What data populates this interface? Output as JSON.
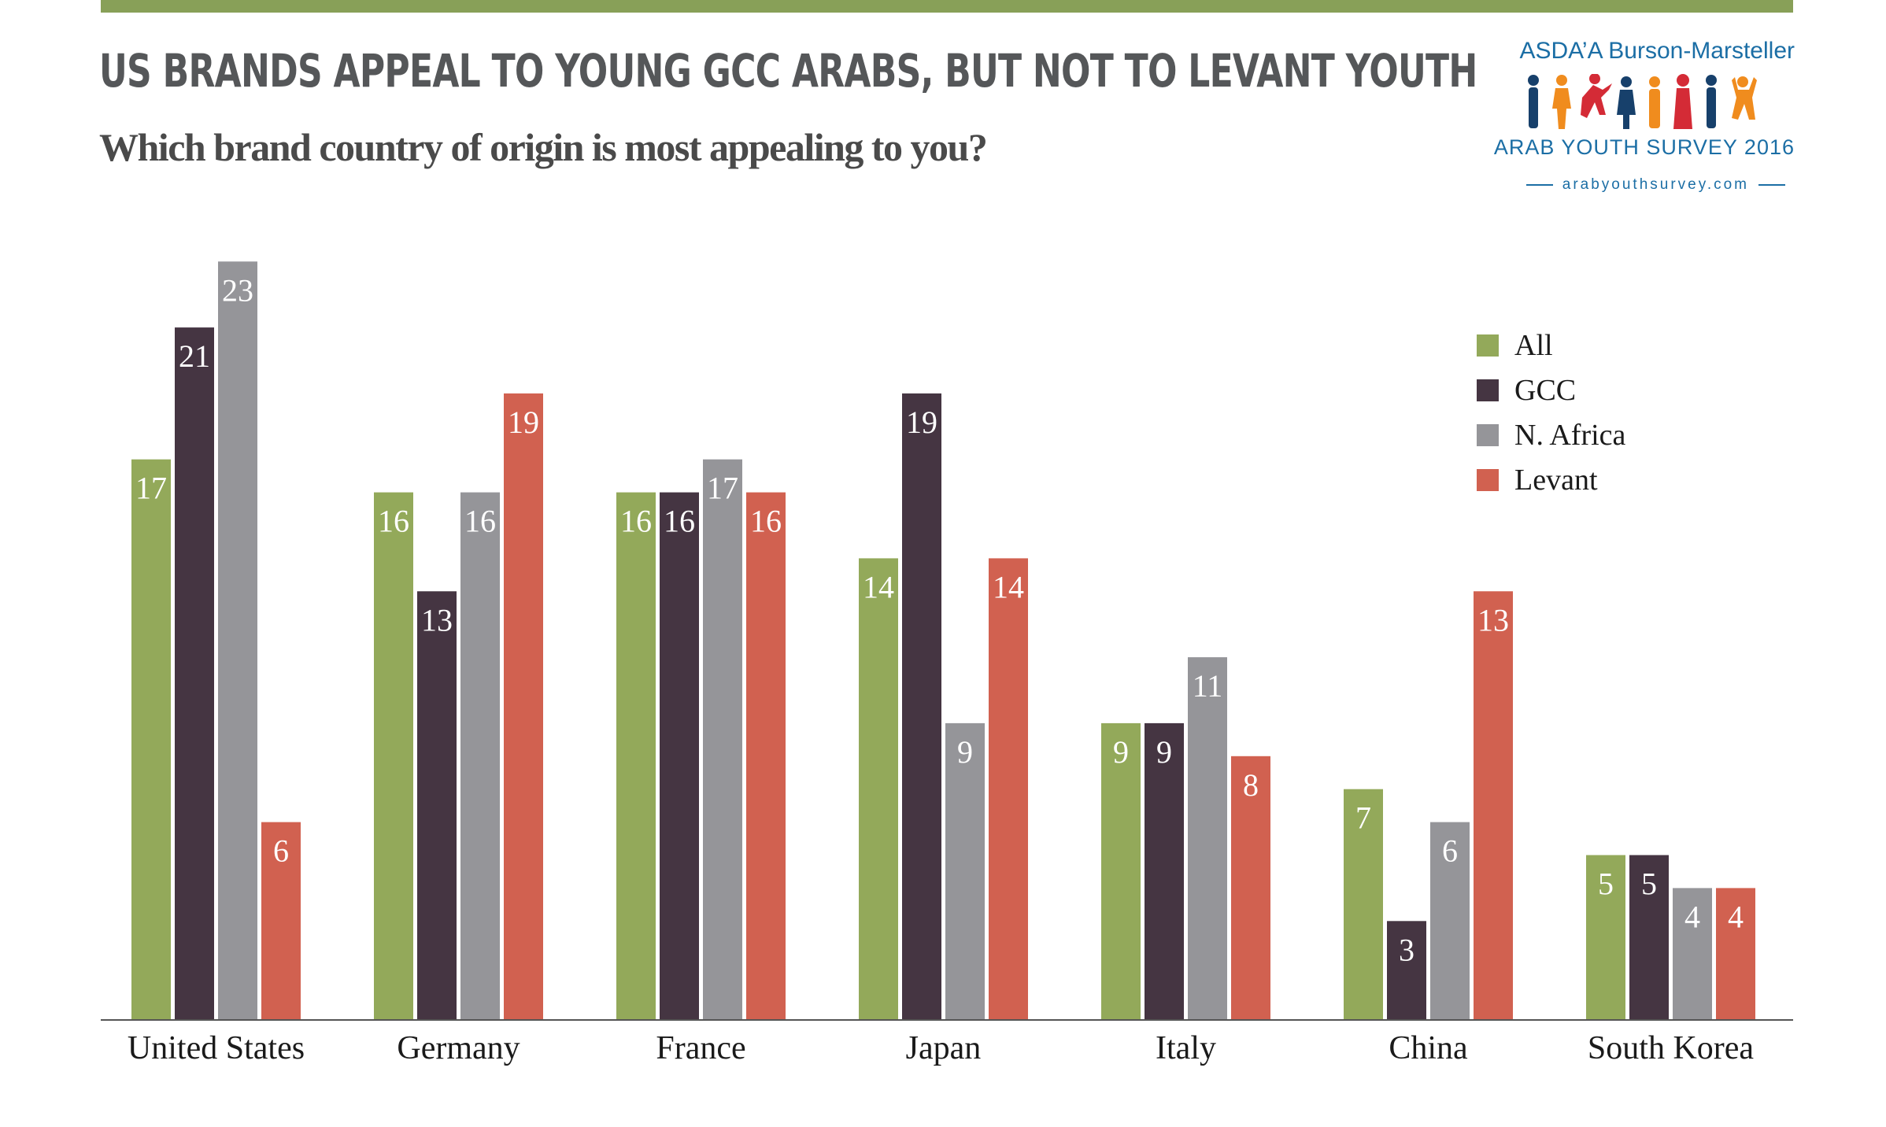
{
  "header": {
    "title": "US BRANDS APPEAL TO YOUNG GCC ARABS, BUT NOT TO LEVANT YOUTH",
    "subtitle": "Which brand country of origin is most appealing to you?"
  },
  "logo": {
    "org": "ASDA’A Burson-Marsteller",
    "survey": "ARAB YOUTH SURVEY 2016",
    "site": "arabyouthsurvey.com"
  },
  "colors": {
    "accent_band": "#88a058",
    "All": "#93a95a",
    "GCC": "#453542",
    "N. Africa": "#959599",
    "Levant": "#d16150"
  },
  "chart_data": {
    "type": "bar",
    "title": "US BRANDS APPEAL TO YOUNG GCC ARABS, BUT NOT TO LEVANT YOUTH",
    "subtitle": "Which brand country of origin is most appealing to you?",
    "categories": [
      "United States",
      "Germany",
      "France",
      "Japan",
      "Italy",
      "China",
      "South Korea"
    ],
    "series": [
      {
        "name": "All",
        "color": "#93a95a",
        "values": [
          17,
          16,
          16,
          14,
          9,
          7,
          5
        ]
      },
      {
        "name": "GCC",
        "color": "#453542",
        "values": [
          21,
          13,
          16,
          19,
          9,
          3,
          5
        ]
      },
      {
        "name": "N. Africa",
        "color": "#959599",
        "values": [
          23,
          16,
          17,
          9,
          11,
          6,
          4
        ]
      },
      {
        "name": "Levant",
        "color": "#d16150",
        "values": [
          6,
          19,
          16,
          14,
          8,
          13,
          4
        ]
      }
    ],
    "xlabel": "",
    "ylabel": "",
    "ylim": [
      0,
      23
    ],
    "grid": false,
    "legend_position": "top-right",
    "data_labels": true
  }
}
